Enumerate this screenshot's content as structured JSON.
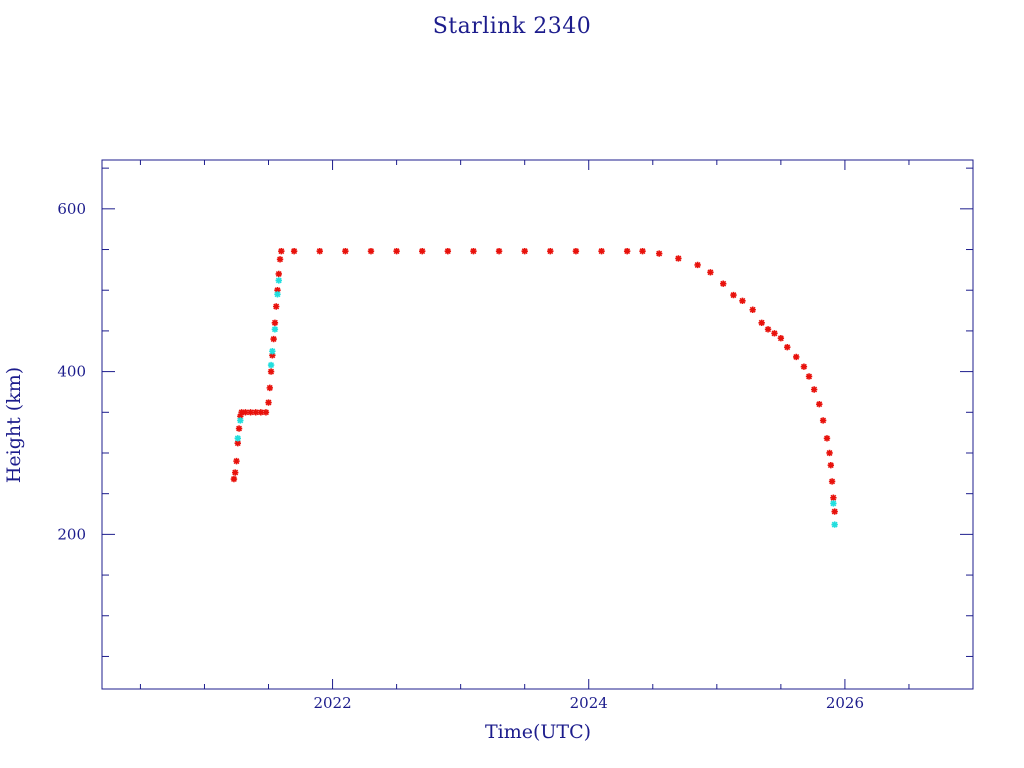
{
  "chart_data": {
    "type": "scatter",
    "title": "Starlink 2340",
    "xlabel": "Time(UTC)",
    "ylabel": "Height (km)",
    "xlim": [
      2020.2,
      2027.0
    ],
    "ylim": [
      10,
      660
    ],
    "x_ticks": [
      2022,
      2024,
      2026
    ],
    "x_tick_labels": [
      "2022",
      "2024",
      "2026"
    ],
    "y_ticks": [
      200,
      400,
      600
    ],
    "y_tick_labels": [
      "200",
      "400",
      "600"
    ],
    "grid": false,
    "colors": {
      "axes": "#1c1c8c",
      "primary": "#e8120c",
      "secondary": "#22dede"
    },
    "series": [
      {
        "color": "#e8120c",
        "points": [
          [
            2021.23,
            268
          ],
          [
            2021.24,
            276
          ],
          [
            2021.25,
            290
          ],
          [
            2021.26,
            312
          ],
          [
            2021.27,
            330
          ],
          [
            2021.28,
            345
          ],
          [
            2021.29,
            350
          ],
          [
            2021.32,
            350
          ],
          [
            2021.36,
            350
          ],
          [
            2021.4,
            350
          ],
          [
            2021.44,
            350
          ],
          [
            2021.48,
            350
          ],
          [
            2021.5,
            362
          ],
          [
            2021.51,
            380
          ],
          [
            2021.52,
            400
          ],
          [
            2021.53,
            420
          ],
          [
            2021.54,
            440
          ],
          [
            2021.55,
            460
          ],
          [
            2021.56,
            480
          ],
          [
            2021.57,
            500
          ],
          [
            2021.58,
            520
          ],
          [
            2021.59,
            538
          ],
          [
            2021.6,
            548
          ],
          [
            2021.7,
            548
          ],
          [
            2021.9,
            548
          ],
          [
            2022.1,
            548
          ],
          [
            2022.3,
            548
          ],
          [
            2022.5,
            548
          ],
          [
            2022.7,
            548
          ],
          [
            2022.9,
            548
          ],
          [
            2023.1,
            548
          ],
          [
            2023.3,
            548
          ],
          [
            2023.5,
            548
          ],
          [
            2023.7,
            548
          ],
          [
            2023.9,
            548
          ],
          [
            2024.1,
            548
          ],
          [
            2024.3,
            548
          ],
          [
            2024.42,
            548
          ],
          [
            2024.55,
            545
          ],
          [
            2024.7,
            539
          ],
          [
            2024.85,
            531
          ],
          [
            2024.95,
            522
          ],
          [
            2025.05,
            508
          ],
          [
            2025.13,
            494
          ],
          [
            2025.2,
            487
          ],
          [
            2025.28,
            476
          ],
          [
            2025.35,
            460
          ],
          [
            2025.4,
            452
          ],
          [
            2025.45,
            447
          ],
          [
            2025.5,
            441
          ],
          [
            2025.55,
            430
          ],
          [
            2025.62,
            418
          ],
          [
            2025.68,
            406
          ],
          [
            2025.72,
            394
          ],
          [
            2025.76,
            378
          ],
          [
            2025.8,
            360
          ],
          [
            2025.83,
            340
          ],
          [
            2025.86,
            318
          ],
          [
            2025.88,
            300
          ],
          [
            2025.89,
            285
          ],
          [
            2025.9,
            265
          ],
          [
            2025.91,
            245
          ],
          [
            2025.92,
            228
          ]
        ]
      },
      {
        "color": "#22dede",
        "points": [
          [
            2021.26,
            318
          ],
          [
            2021.28,
            340
          ],
          [
            2021.52,
            408
          ],
          [
            2021.53,
            425
          ],
          [
            2021.55,
            452
          ],
          [
            2021.57,
            495
          ],
          [
            2021.58,
            512
          ],
          [
            2025.91,
            238
          ],
          [
            2025.92,
            212
          ]
        ]
      }
    ]
  }
}
